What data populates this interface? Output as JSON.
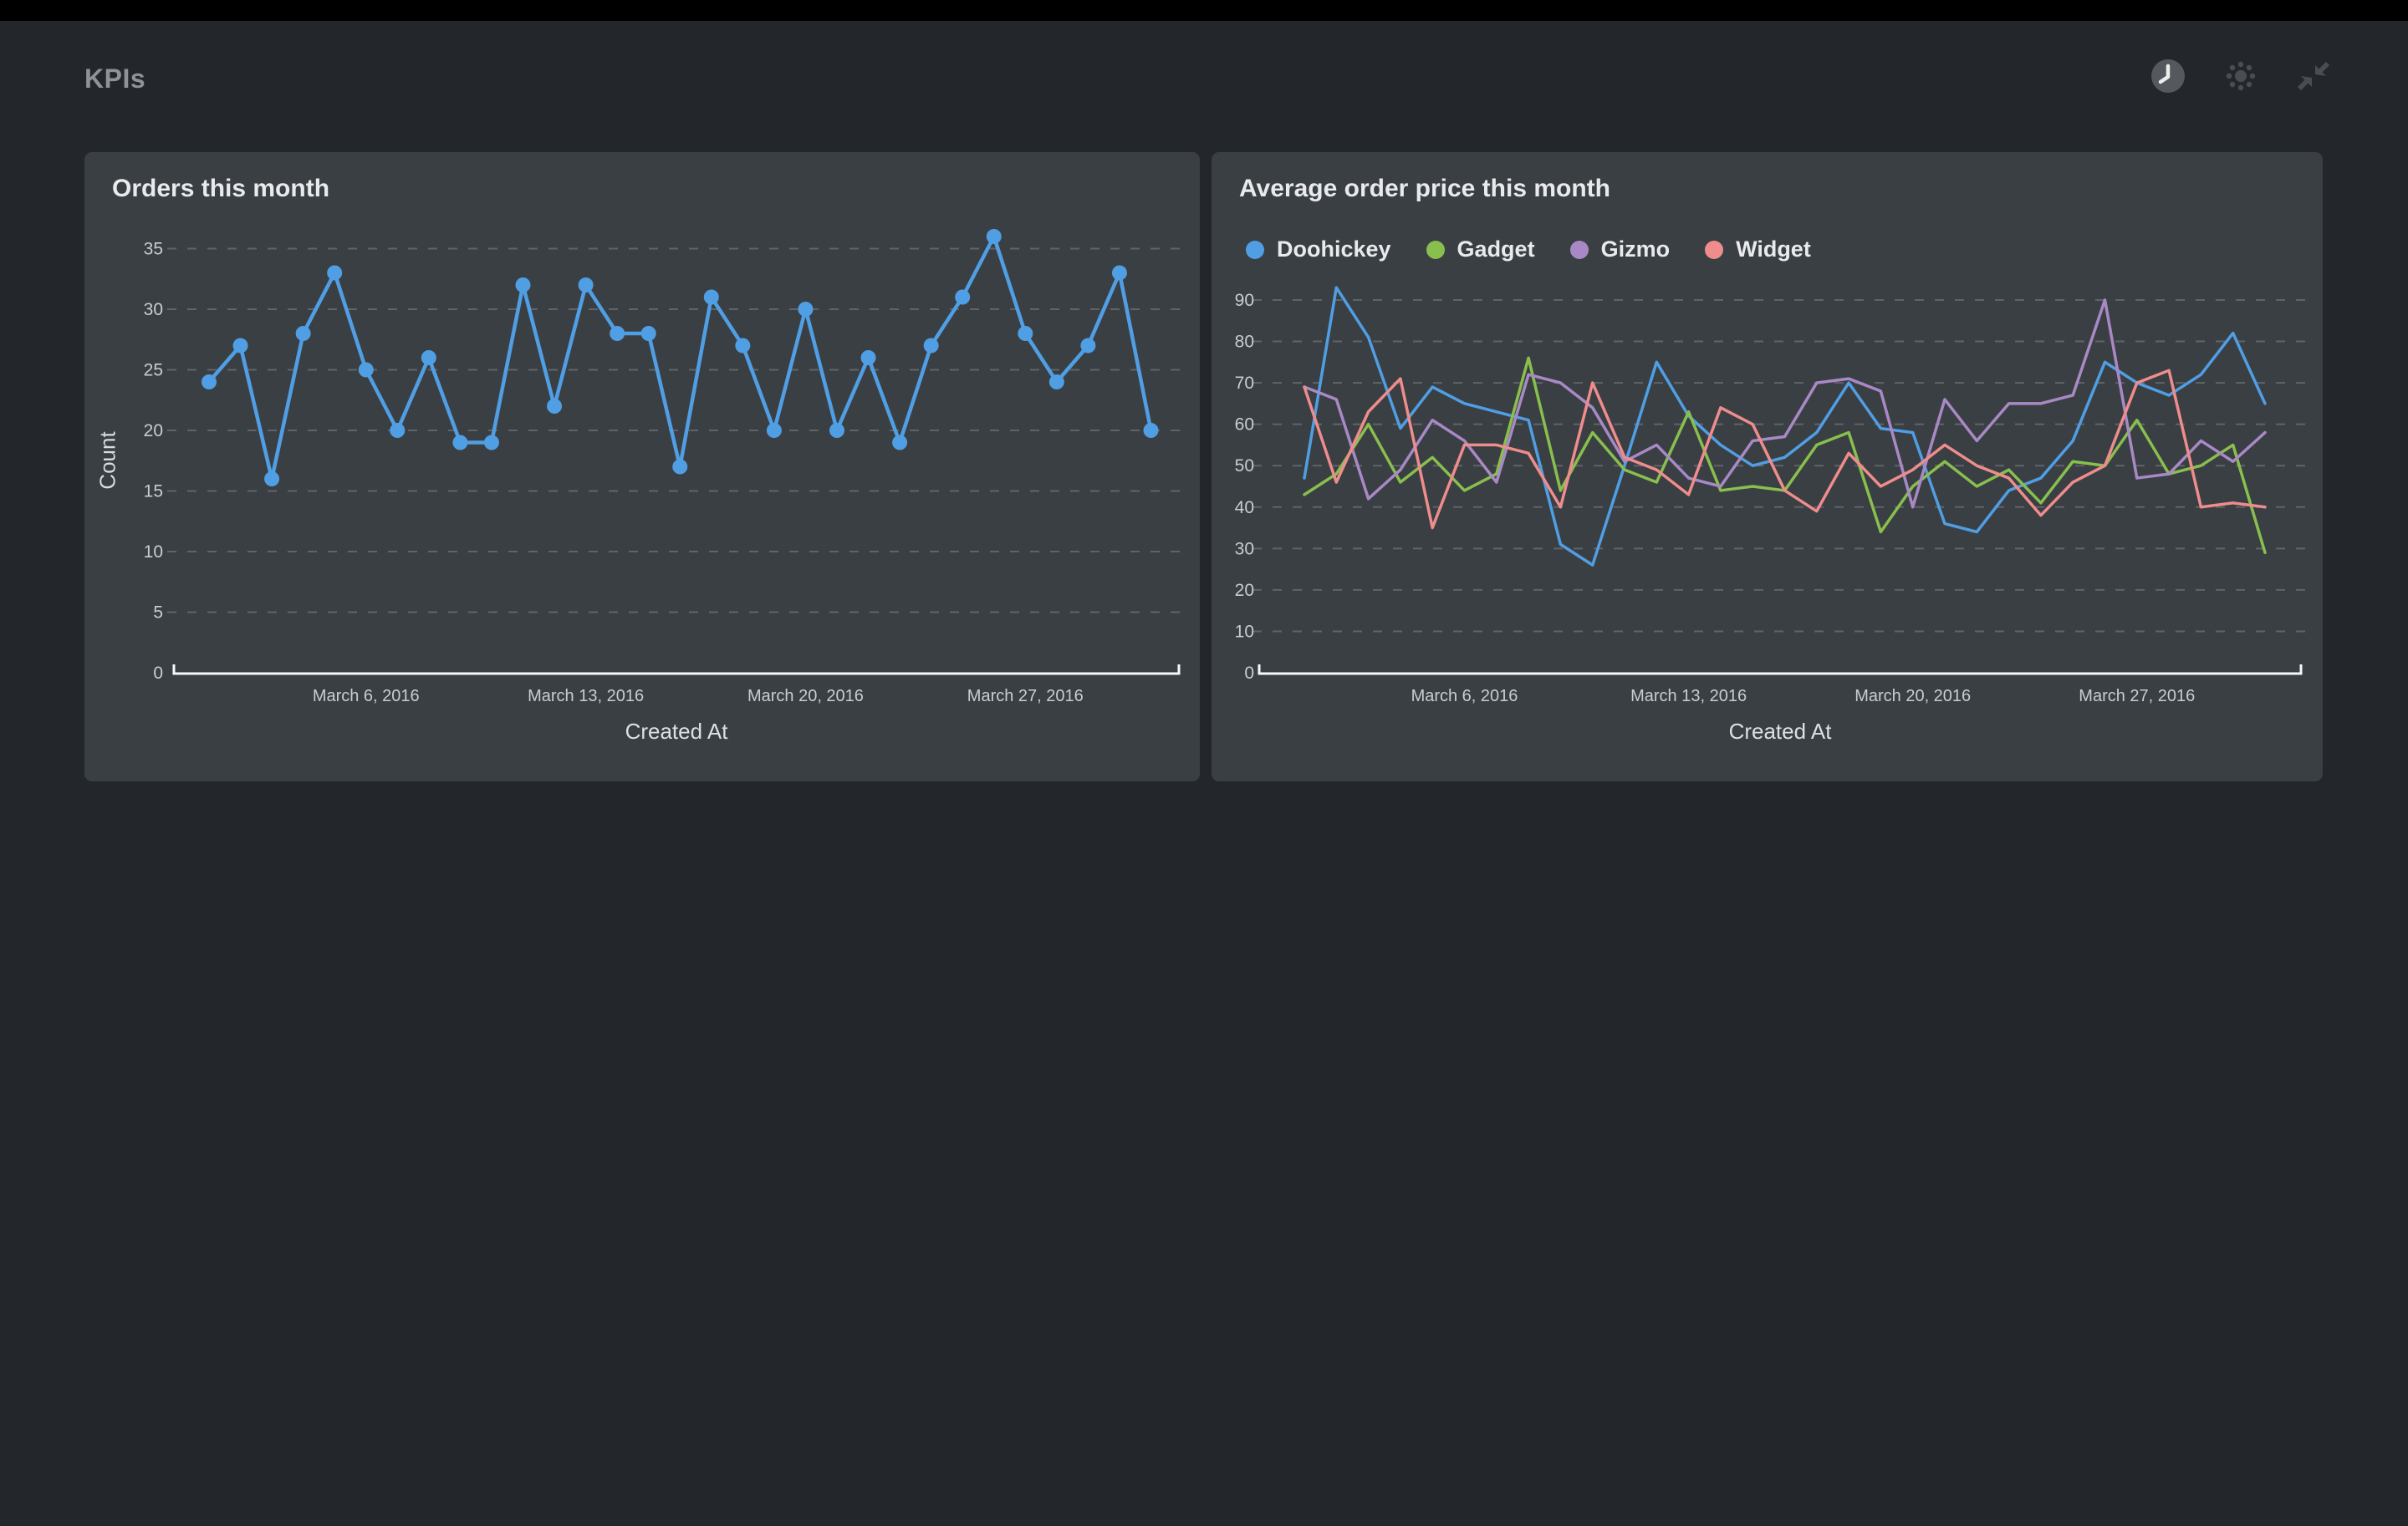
{
  "page": {
    "title": "KPIs"
  },
  "toolbar": {
    "refresh_timer_label": "auto-refresh clock",
    "night_mode_label": "night mode toggle",
    "fullscreen_label": "exit fullscreen"
  },
  "theme": {
    "topbar": "#000000",
    "page_bg": "#23262a",
    "card_bg": "#3a3f44",
    "title_text": "#e8eaec",
    "tick_text": "#c9cdd1",
    "axis_line": "#f7f9fa",
    "gridline": "#9da1a6",
    "icon_color": "#4a4e53",
    "clock_circle": "#55595e"
  },
  "chart_data": [
    {
      "type": "line",
      "title": "Orders this month",
      "xlabel": "Created At",
      "ylabel": "Count",
      "ylim": [
        0,
        35
      ],
      "ytick_step": 5,
      "yticks": [
        0,
        5,
        10,
        15,
        20,
        25,
        30,
        35
      ],
      "grid": "dashed horizontal",
      "legend_position": "none",
      "x_unit": "day of March 2016, days 1-31",
      "x_tick_labels": [
        "March 6, 2016",
        "March 13, 2016",
        "March 20, 2016",
        "March 27, 2016"
      ],
      "x_tick_indices": [
        5,
        12,
        19,
        26
      ],
      "markers": true,
      "series": [
        {
          "name": "Count",
          "color": "#509ee3",
          "values": [
            24,
            27,
            16,
            28,
            33,
            25,
            20,
            26,
            19,
            19,
            32,
            22,
            32,
            28,
            28,
            17,
            31,
            27,
            20,
            30,
            20,
            26,
            19,
            27,
            31,
            36,
            28,
            24,
            27,
            33,
            20
          ]
        }
      ]
    },
    {
      "type": "line",
      "title": "Average order price this month",
      "xlabel": "Created At",
      "ylabel": "",
      "ylim": [
        0,
        90
      ],
      "ytick_step": 10,
      "yticks": [
        0,
        10,
        20,
        30,
        40,
        50,
        60,
        70,
        80,
        90
      ],
      "grid": "dashed horizontal",
      "legend_position": "top",
      "x_unit": "day of March 2016, days 1-31",
      "x_tick_labels": [
        "March 6, 2016",
        "March 13, 2016",
        "March 20, 2016",
        "March 27, 2016"
      ],
      "x_tick_indices": [
        5,
        12,
        19,
        26
      ],
      "markers": false,
      "series": [
        {
          "name": "Doohickey",
          "color": "#509ee3",
          "values": [
            47,
            93,
            81,
            59,
            69,
            65,
            63,
            61,
            31,
            26,
            50,
            75,
            62,
            55,
            50,
            52,
            58,
            70,
            59,
            58,
            36,
            34,
            44,
            47,
            56,
            75,
            70,
            67,
            72,
            82,
            65
          ]
        },
        {
          "name": "Gadget",
          "color": "#88bf4d",
          "values": [
            43,
            48,
            60,
            46,
            52,
            44,
            48,
            76,
            44,
            58,
            49,
            46,
            63,
            44,
            45,
            44,
            55,
            58,
            34,
            45,
            51,
            45,
            49,
            41,
            51,
            50,
            61,
            48,
            50,
            55,
            29
          ]
        },
        {
          "name": "Gizmo",
          "color": "#a989c5",
          "values": [
            69,
            66,
            42,
            49,
            61,
            56,
            46,
            72,
            70,
            64,
            51,
            55,
            47,
            45,
            56,
            57,
            70,
            71,
            68,
            40,
            66,
            56,
            65,
            65,
            67,
            90,
            47,
            48,
            56,
            51,
            58
          ]
        },
        {
          "name": "Widget",
          "color": "#ef8c8c",
          "values": [
            69,
            46,
            63,
            71,
            35,
            55,
            55,
            53,
            40,
            70,
            52,
            49,
            43,
            64,
            60,
            44,
            39,
            53,
            45,
            49,
            55,
            50,
            47,
            38,
            46,
            50,
            70,
            73,
            40,
            41,
            40
          ]
        }
      ]
    }
  ]
}
